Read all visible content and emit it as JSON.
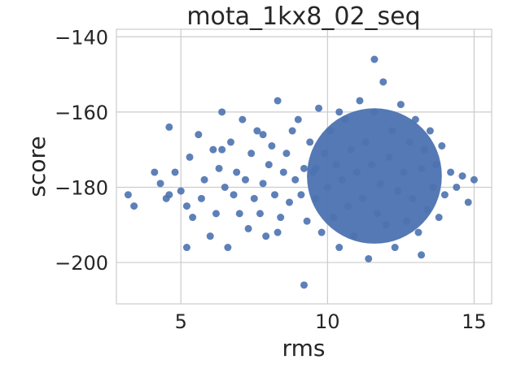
{
  "chart_data": {
    "type": "scatter",
    "title": "mota_1kx8_02_seq",
    "xlabel": "rms",
    "ylabel": "score",
    "xlim": [
      2.8,
      15.6
    ],
    "ylim": [
      -211,
      -138
    ],
    "xticks": [
      5,
      10,
      15
    ],
    "yticks": [
      -140,
      -160,
      -180,
      -200
    ],
    "grid": true,
    "series": [
      {
        "color": "#4c72b0",
        "x": [
          3.2,
          3.4,
          4.1,
          4.3,
          4.5,
          4.6,
          4.8,
          5.0,
          5.2,
          5.3,
          5.4,
          5.6,
          5.7,
          5.8,
          6.0,
          6.1,
          6.2,
          6.3,
          6.4,
          6.5,
          6.6,
          6.7,
          6.8,
          6.9,
          7.0,
          7.1,
          7.2,
          7.3,
          7.4,
          7.5,
          7.6,
          7.7,
          7.8,
          7.9,
          8.0,
          8.1,
          8.2,
          8.3,
          8.4,
          8.5,
          8.6,
          8.7,
          8.8,
          8.9,
          9.0,
          9.1,
          9.2,
          9.3,
          9.4,
          9.5,
          9.6,
          9.7,
          9.8,
          9.9,
          10.0,
          10.1,
          10.2,
          10.3,
          10.4,
          10.5,
          10.6,
          10.7,
          10.8,
          10.9,
          11.0,
          11.1,
          11.2,
          11.3,
          11.4,
          11.5,
          11.6,
          11.7,
          11.8,
          11.9,
          12.0,
          12.1,
          12.2,
          12.3,
          12.4,
          12.5,
          12.6,
          12.7,
          12.8,
          12.9,
          13.0,
          13.1,
          13.2,
          13.3,
          13.4,
          13.5,
          13.6,
          13.7,
          13.8,
          13.9,
          14.0,
          14.2,
          14.4,
          14.6,
          14.8,
          15.0,
          4.6,
          5.2,
          6.4,
          7.8,
          9.2,
          11.6,
          13.2,
          10.4,
          9.6,
          8.3
        ],
        "y": [
          -182,
          -185,
          -176,
          -179,
          -183,
          -164,
          -176,
          -181,
          -196,
          -172,
          -188,
          -166,
          -183,
          -178,
          -193,
          -170,
          -187,
          -175,
          -160,
          -180,
          -196,
          -168,
          -182,
          -176,
          -187,
          -162,
          -178,
          -191,
          -171,
          -183,
          -165,
          -187,
          -179,
          -193,
          -174,
          -169,
          -182,
          -157,
          -188,
          -176,
          -171,
          -184,
          -165,
          -178,
          -162,
          -182,
          -175,
          -189,
          -168,
          -176,
          -183,
          -159,
          -192,
          -171,
          -180,
          -165,
          -188,
          -174,
          -196,
          -178,
          -162,
          -185,
          -170,
          -193,
          -176,
          -157,
          -183,
          -168,
          -199,
          -174,
          -160,
          -187,
          -179,
          -152,
          -190,
          -172,
          -165,
          -196,
          -181,
          -158,
          -176,
          -189,
          -168,
          -183,
          -162,
          -192,
          -175,
          -170,
          -186,
          -165,
          -180,
          -174,
          -188,
          -169,
          -182,
          -176,
          -180,
          -177,
          -184,
          -178,
          -182,
          -185,
          -170,
          -166,
          -206,
          -146,
          -198,
          -160,
          -175,
          -192
        ]
      }
    ]
  }
}
